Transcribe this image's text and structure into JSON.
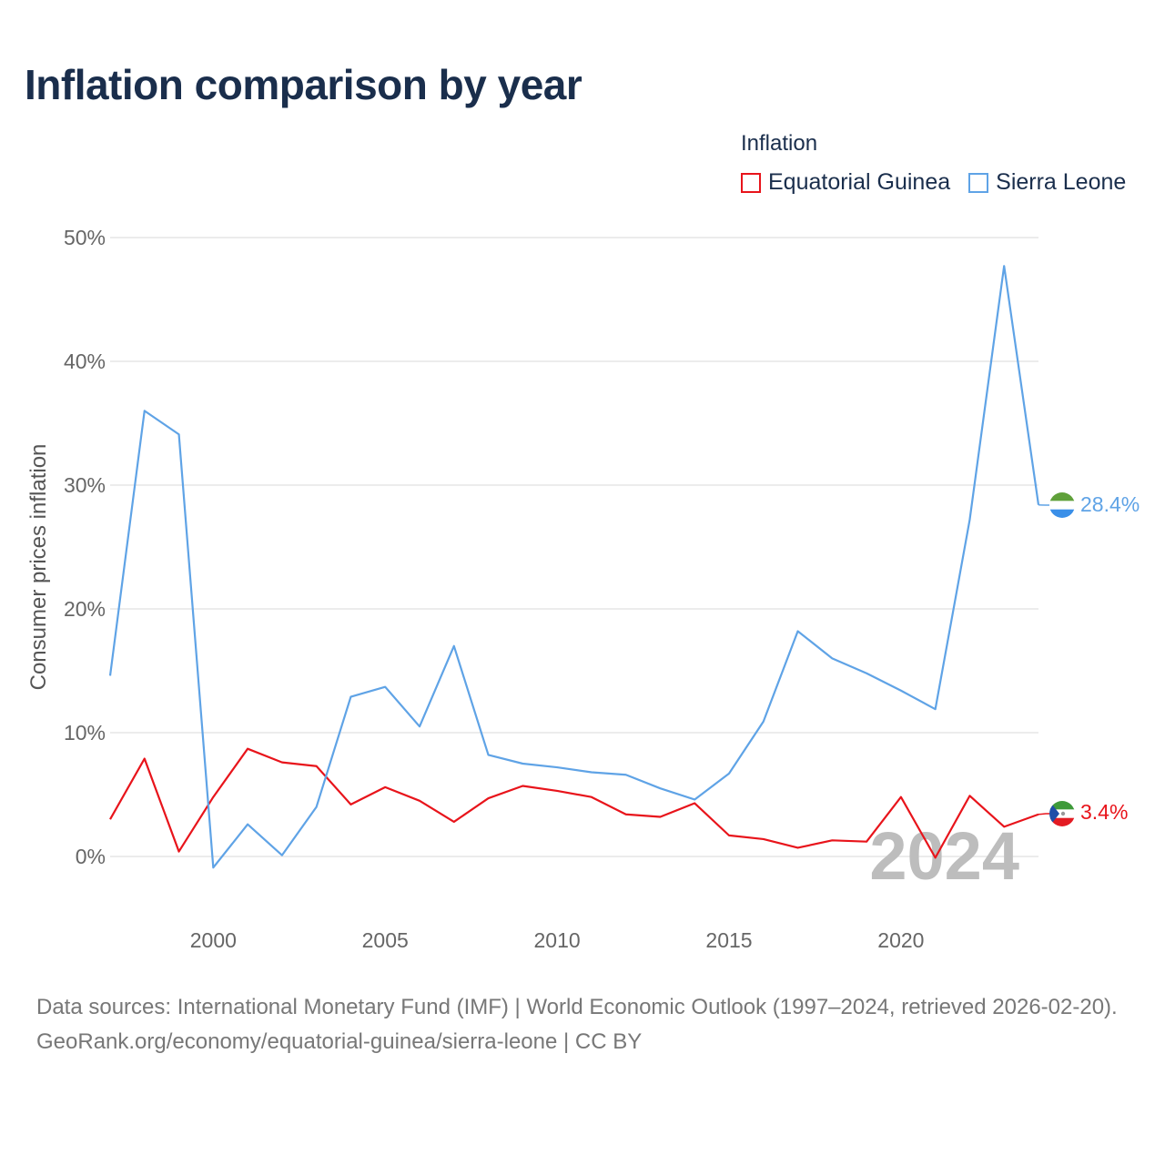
{
  "title": "Inflation comparison by year",
  "legend": {
    "title": "Inflation",
    "items": [
      {
        "label": "Equatorial Guinea",
        "color": "#e8141b"
      },
      {
        "label": "Sierra Leone",
        "color": "#5fa3e6"
      }
    ]
  },
  "footer": {
    "sources": "Data sources: International Monetary Fund (IMF) | World Economic Outlook (1997–2024, retrieved 2026-02-20).",
    "credit": "GeoRank.org/economy/equatorial-guinea/sierra-leone | CC BY"
  },
  "chart_data": {
    "type": "line",
    "title": "Inflation comparison by year",
    "xlabel": "",
    "ylabel": "Consumer prices inflation",
    "xlim": [
      1997,
      2024
    ],
    "ylim": [
      -5,
      50
    ],
    "yticks": [
      0,
      10,
      20,
      30,
      40,
      50
    ],
    "ytick_labels": [
      "0%",
      "10%",
      "20%",
      "30%",
      "40%",
      "50%"
    ],
    "xticks": [
      2000,
      2005,
      2010,
      2015,
      2020
    ],
    "xtick_labels": [
      "2000",
      "2005",
      "2010",
      "2015",
      "2020"
    ],
    "highlight_year": "2024",
    "x": [
      1997,
      1998,
      1999,
      2000,
      2001,
      2002,
      2003,
      2004,
      2005,
      2006,
      2007,
      2008,
      2009,
      2010,
      2011,
      2012,
      2013,
      2014,
      2015,
      2016,
      2017,
      2018,
      2019,
      2020,
      2021,
      2022,
      2023,
      2024
    ],
    "series": [
      {
        "name": "Equatorial Guinea",
        "color": "#e8141b",
        "end_label": "3.4%",
        "values": [
          3.0,
          7.9,
          0.4,
          4.8,
          8.7,
          7.6,
          7.3,
          4.2,
          5.6,
          4.5,
          2.8,
          4.7,
          5.7,
          5.3,
          4.8,
          3.4,
          3.2,
          4.3,
          1.7,
          1.4,
          0.7,
          1.3,
          1.2,
          4.8,
          -0.1,
          4.9,
          2.4,
          3.4
        ]
      },
      {
        "name": "Sierra Leone",
        "color": "#5fa3e6",
        "end_label": "28.4%",
        "values": [
          14.6,
          36.0,
          34.1,
          -0.9,
          2.6,
          0.1,
          4.0,
          12.9,
          13.7,
          10.5,
          17.0,
          8.2,
          7.5,
          7.2,
          6.8,
          6.6,
          5.5,
          4.6,
          6.7,
          10.9,
          18.2,
          16.0,
          14.8,
          13.4,
          11.9,
          27.2,
          47.7,
          28.4
        ]
      }
    ]
  }
}
